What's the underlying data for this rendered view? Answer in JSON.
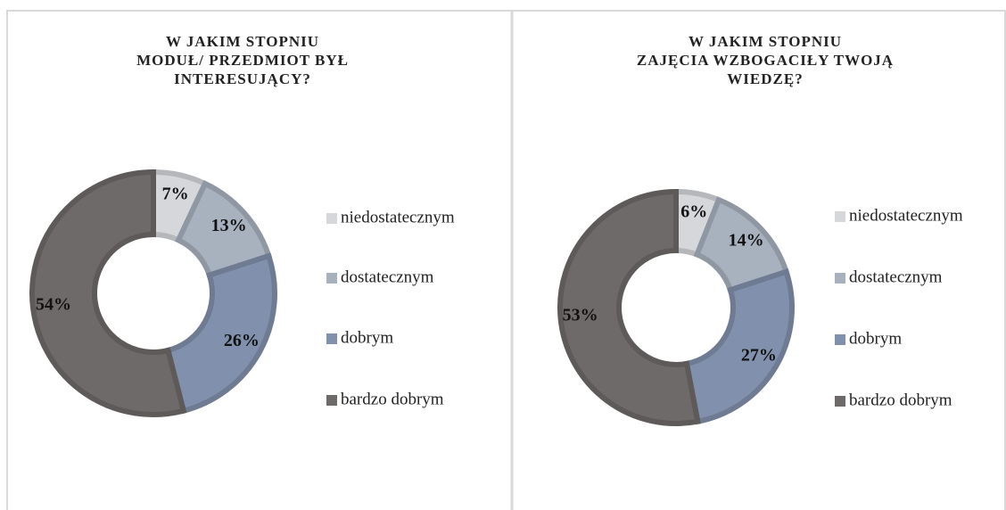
{
  "chart_data": [
    {
      "type": "pie",
      "title": [
        "W JAKIM STOPNIU",
        "MODUŁ/ PRZEDMIOT BYŁ",
        "INTERESUJĄCY?"
      ],
      "categories": [
        "niedostatecznym",
        "dostatecznym",
        "dobrym",
        "bardzo dobrym"
      ],
      "values": [
        7,
        13,
        26,
        54
      ],
      "value_labels": [
        "7%",
        "13%",
        "26%",
        "54%"
      ],
      "colors": [
        "#d5d7db",
        "#a8b2bf",
        "#8191ad",
        "#6f6a6a"
      ],
      "donut": true,
      "legend": "right"
    },
    {
      "type": "pie",
      "title": [
        "W JAKIM STOPNIU",
        "ZAJĘCIA WZBOGACIŁY TWOJĄ",
        "WIEDZĘ?"
      ],
      "categories": [
        "niedostatecznym",
        "dostatecznym",
        "dobrym",
        "bardzo dobrym"
      ],
      "values": [
        6,
        14,
        27,
        53
      ],
      "value_labels": [
        "6%",
        "14%",
        "27%",
        "53%"
      ],
      "colors": [
        "#d5d7db",
        "#a8b2bf",
        "#8191ad",
        "#6f6a6a"
      ],
      "donut": true,
      "legend": "right"
    }
  ]
}
